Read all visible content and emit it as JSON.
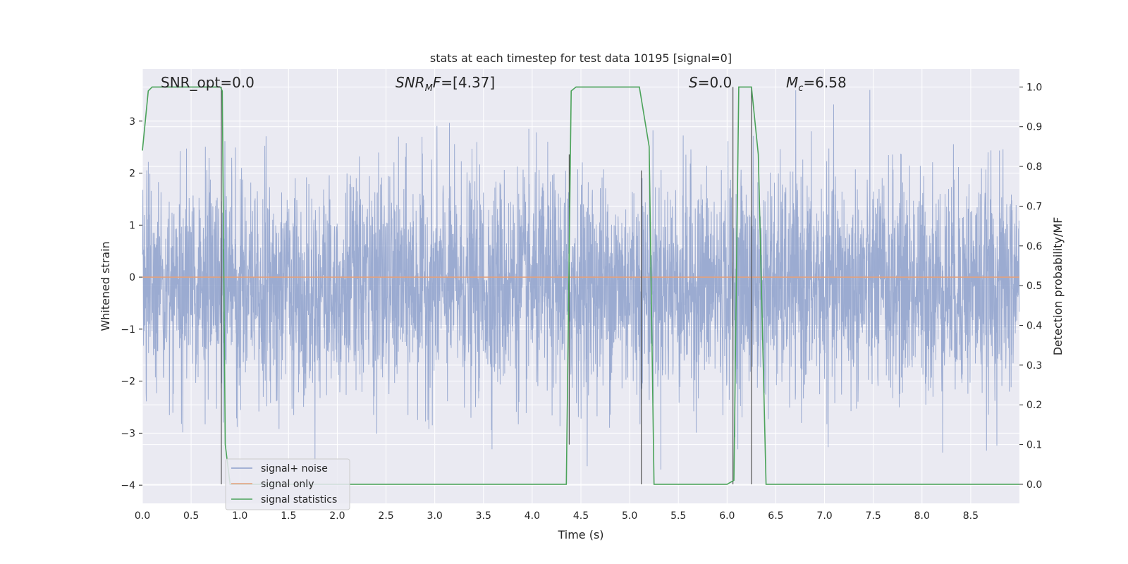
{
  "chart_data": {
    "type": "line",
    "title": "stats at each timestep for test data 10195 [signal=0]",
    "xlabel": "Time (s)",
    "ylabel_left": "Whitened strain",
    "ylabel_right": "Detection probability/MF",
    "xlim": [
      0,
      9
    ],
    "ylim_left": [
      -4.35,
      4.0
    ],
    "ylim_right": [
      -0.048,
      1.045
    ],
    "x_ticks": [
      0.0,
      0.5,
      1.0,
      1.5,
      2.0,
      2.5,
      3.0,
      3.5,
      4.0,
      4.5,
      5.0,
      5.5,
      6.0,
      6.5,
      7.0,
      7.5,
      8.0,
      8.5
    ],
    "x_tick_labels": [
      "0.0",
      "0.5",
      "1.0",
      "1.5",
      "2.0",
      "2.5",
      "3.0",
      "3.5",
      "4.0",
      "4.5",
      "5.0",
      "5.5",
      "6.0",
      "6.5",
      "7.0",
      "7.5",
      "8.0",
      "8.5"
    ],
    "y_left_ticks": [
      3,
      2,
      1,
      0,
      -1,
      -2,
      -3,
      -4
    ],
    "y_left_tick_labels": [
      "3",
      "2",
      "1",
      "0",
      "−1",
      "−2",
      "−3",
      "−4"
    ],
    "y_right_ticks": [
      1.0,
      0.9,
      0.8,
      0.7,
      0.6,
      0.5,
      0.4,
      0.3,
      0.2,
      0.1,
      0.0
    ],
    "y_right_tick_labels": [
      "1.0",
      "0.9",
      "0.8",
      "0.7",
      "0.6",
      "0.5",
      "0.4",
      "0.3",
      "0.2",
      "0.1",
      "0.0"
    ],
    "grid": true,
    "legend_position": "lower-left",
    "annotations": {
      "snr_opt": {
        "prefix": "SNR_opt=",
        "value": "0.0"
      },
      "snr_mf": {
        "italic": "SNR",
        "sub": "M",
        "italic2": "F",
        "value": "=[4.37]"
      },
      "s": {
        "italic": "S",
        "value": "=0.0"
      },
      "mc": {
        "italic": "M",
        "sub": "c",
        "value": "=6.58"
      }
    },
    "series": [
      {
        "name": "signal+ noise",
        "axis": "left",
        "color": "#8da0cb",
        "description": "noisy strain, roughly between -4 and 3.5",
        "amplitude_range": [
          -4.0,
          3.6
        ]
      },
      {
        "name": "signal only",
        "axis": "left",
        "color": "#e5a07a",
        "x": [
          0,
          9
        ],
        "y": [
          0,
          0
        ]
      },
      {
        "name": "signal statistics",
        "axis": "right",
        "color": "#4ba35a",
        "x": [
          0,
          0.06,
          0.1,
          0.8,
          0.82,
          0.85,
          0.9,
          4.35,
          4.4,
          4.45,
          5.1,
          5.2,
          5.25,
          6.0,
          6.07,
          6.12,
          6.25,
          6.32,
          6.4,
          9.0
        ],
        "y": [
          0.84,
          0.99,
          1.0,
          1.0,
          0.99,
          0.1,
          0.0,
          0.0,
          0.99,
          1.0,
          1.0,
          0.85,
          0.0,
          0.0,
          0.01,
          1.0,
          1.0,
          0.83,
          0.0,
          0.0
        ]
      }
    ],
    "vlines_right": [
      {
        "x": 0.81,
        "y": [
          0.0,
          1.0
        ]
      },
      {
        "x": 4.38,
        "y": [
          0.1,
          0.83
        ]
      },
      {
        "x": 5.12,
        "y": [
          0.0,
          0.79
        ]
      },
      {
        "x": 6.06,
        "y": [
          0.0,
          1.0
        ]
      },
      {
        "x": 6.25,
        "y": [
          0.0,
          1.0
        ]
      }
    ]
  }
}
